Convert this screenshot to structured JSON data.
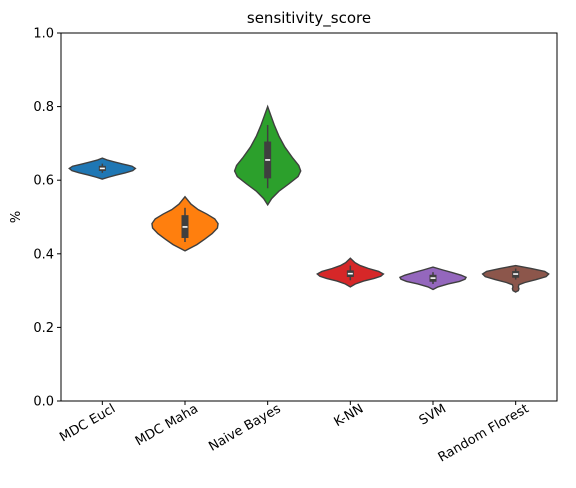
{
  "chart_data": {
    "type": "violin",
    "title": "sensitivity_score",
    "xlabel": "",
    "ylabel": "%",
    "ylim": [
      0,
      1.0
    ],
    "yticks": [
      0.0,
      0.2,
      0.4,
      0.6,
      0.8,
      1.0
    ],
    "ytick_labels": [
      "0.0",
      "0.2",
      "0.4",
      "0.6",
      "0.8",
      "1.0"
    ],
    "grid": false,
    "legend": "none",
    "categories": [
      "MDC Eucl",
      "MDC Maha",
      "Naive Bayes",
      "K-NN",
      "SVM",
      "Random Florest"
    ],
    "series": [
      {
        "category": "MDC Eucl",
        "color": "#1f77b4",
        "min": 0.62,
        "q1": 0.625,
        "median": 0.632,
        "q3": 0.639,
        "max": 0.645,
        "violin_profile": [
          [
            0.603,
            0
          ],
          [
            0.608,
            0.18
          ],
          [
            0.614,
            0.42
          ],
          [
            0.62,
            0.7
          ],
          [
            0.626,
            0.92
          ],
          [
            0.632,
            1.0
          ],
          [
            0.638,
            0.9
          ],
          [
            0.644,
            0.62
          ],
          [
            0.65,
            0.35
          ],
          [
            0.655,
            0.14
          ],
          [
            0.66,
            0
          ]
        ]
      },
      {
        "category": "MDC Maha",
        "color": "#ff7f0e",
        "min": 0.432,
        "q1": 0.443,
        "median": 0.473,
        "q3": 0.505,
        "max": 0.525,
        "violin_profile": [
          [
            0.408,
            0
          ],
          [
            0.415,
            0.15
          ],
          [
            0.425,
            0.36
          ],
          [
            0.44,
            0.6
          ],
          [
            0.455,
            0.82
          ],
          [
            0.47,
            0.98
          ],
          [
            0.482,
            1.0
          ],
          [
            0.495,
            0.9
          ],
          [
            0.508,
            0.66
          ],
          [
            0.52,
            0.4
          ],
          [
            0.535,
            0.18
          ],
          [
            0.555,
            0
          ]
        ]
      },
      {
        "category": "Naive Bayes",
        "color": "#2ca02c",
        "min": 0.578,
        "q1": 0.605,
        "median": 0.655,
        "q3": 0.705,
        "max": 0.75,
        "violin_profile": [
          [
            0.533,
            0
          ],
          [
            0.55,
            0.12
          ],
          [
            0.57,
            0.34
          ],
          [
            0.59,
            0.64
          ],
          [
            0.61,
            0.92
          ],
          [
            0.625,
            1.0
          ],
          [
            0.64,
            0.94
          ],
          [
            0.66,
            0.76
          ],
          [
            0.69,
            0.52
          ],
          [
            0.72,
            0.34
          ],
          [
            0.75,
            0.2
          ],
          [
            0.775,
            0.1
          ],
          [
            0.8,
            0
          ]
        ]
      },
      {
        "category": "K-NN",
        "color": "#d62728",
        "min": 0.328,
        "q1": 0.337,
        "median": 0.346,
        "q3": 0.355,
        "max": 0.368,
        "violin_profile": [
          [
            0.31,
            0
          ],
          [
            0.318,
            0.15
          ],
          [
            0.326,
            0.4
          ],
          [
            0.333,
            0.72
          ],
          [
            0.339,
            0.92
          ],
          [
            0.345,
            1.0
          ],
          [
            0.352,
            0.86
          ],
          [
            0.36,
            0.55
          ],
          [
            0.368,
            0.3
          ],
          [
            0.376,
            0.14
          ],
          [
            0.388,
            0
          ]
        ]
      },
      {
        "category": "SVM",
        "color": "#9467bd",
        "min": 0.318,
        "q1": 0.324,
        "median": 0.334,
        "q3": 0.343,
        "max": 0.35,
        "violin_profile": [
          [
            0.303,
            0
          ],
          [
            0.31,
            0.15
          ],
          [
            0.318,
            0.46
          ],
          [
            0.325,
            0.8
          ],
          [
            0.331,
            0.97
          ],
          [
            0.336,
            1.0
          ],
          [
            0.342,
            0.85
          ],
          [
            0.349,
            0.58
          ],
          [
            0.356,
            0.3
          ],
          [
            0.364,
            0
          ]
        ]
      },
      {
        "category": "Random Florest",
        "color": "#8c564b",
        "min": 0.33,
        "q1": 0.335,
        "median": 0.345,
        "q3": 0.353,
        "max": 0.36,
        "violin_profile": [
          [
            0.296,
            0
          ],
          [
            0.3,
            0.08
          ],
          [
            0.305,
            0.1
          ],
          [
            0.31,
            0.08
          ],
          [
            0.316,
            0.1
          ],
          [
            0.322,
            0.28
          ],
          [
            0.33,
            0.62
          ],
          [
            0.338,
            0.92
          ],
          [
            0.345,
            1.0
          ],
          [
            0.352,
            0.88
          ],
          [
            0.36,
            0.48
          ],
          [
            0.368,
            0
          ]
        ]
      }
    ]
  }
}
